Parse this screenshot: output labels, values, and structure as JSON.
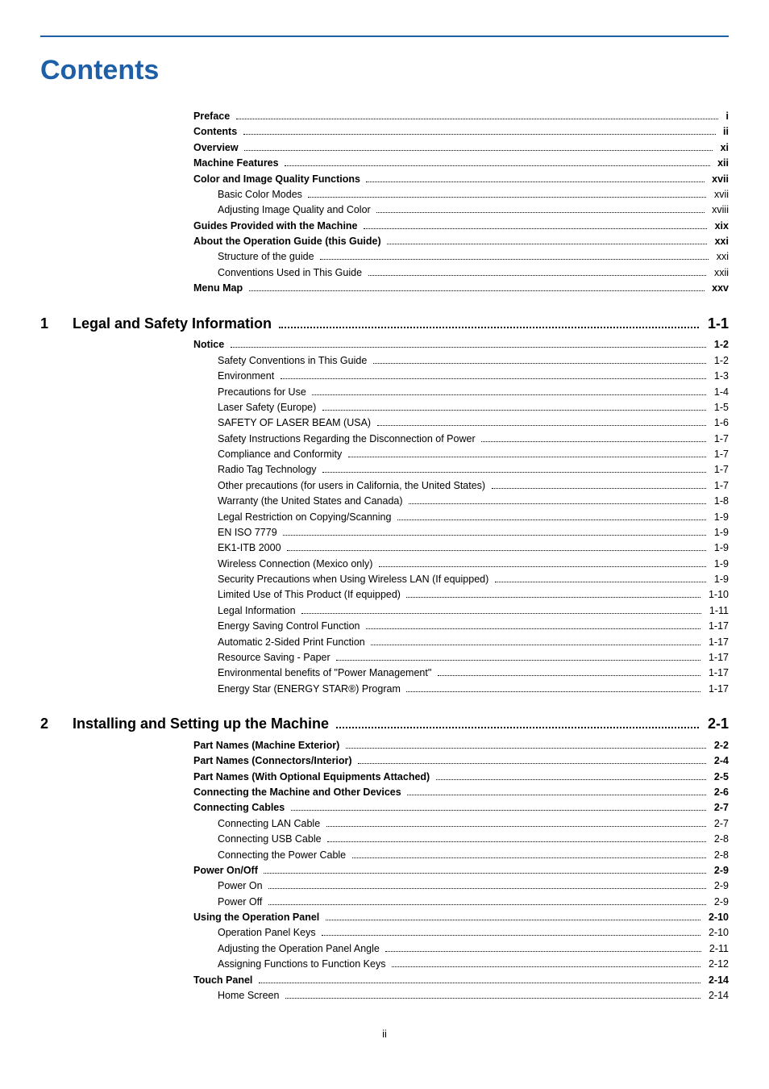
{
  "heading": "Contents",
  "page_number": "ii",
  "colors": {
    "accent": "#1e5fa8",
    "text": "#000000",
    "background": "#ffffff"
  },
  "front": [
    {
      "label": "Preface",
      "page": "i",
      "level": "a",
      "bold": true
    },
    {
      "label": "Contents",
      "page": "ii",
      "level": "a",
      "bold": true
    },
    {
      "label": "Overview",
      "page": "xi",
      "level": "a",
      "bold": true
    },
    {
      "label": "Machine Features",
      "page": "xii",
      "level": "a",
      "bold": true
    },
    {
      "label": "Color and Image Quality Functions",
      "page": "xvii",
      "level": "a",
      "bold": true
    },
    {
      "label": "Basic Color Modes",
      "page": "xvii",
      "level": "b",
      "bold": false
    },
    {
      "label": "Adjusting Image Quality and Color",
      "page": "xviii",
      "level": "b",
      "bold": false
    },
    {
      "label": "Guides Provided with the Machine",
      "page": "xix",
      "level": "a",
      "bold": true
    },
    {
      "label": "About the Operation Guide (this Guide)",
      "page": "xxi",
      "level": "a",
      "bold": true
    },
    {
      "label": "Structure of the guide",
      "page": "xxi",
      "level": "b",
      "bold": false
    },
    {
      "label": "Conventions Used in This Guide",
      "page": "xxii",
      "level": "b",
      "bold": false
    },
    {
      "label": "Menu Map",
      "page": "xxv",
      "level": "a",
      "bold": true
    }
  ],
  "ch1": {
    "num": "1",
    "title": "Legal and Safety Information",
    "page": "1-1",
    "items": [
      {
        "label": "Notice",
        "page": "1-2",
        "level": "c",
        "bold": true
      },
      {
        "label": "Safety Conventions in This Guide",
        "page": "1-2",
        "level": "d",
        "bold": false
      },
      {
        "label": "Environment",
        "page": "1-3",
        "level": "d",
        "bold": false
      },
      {
        "label": "Precautions for Use",
        "page": "1-4",
        "level": "d",
        "bold": false
      },
      {
        "label": "Laser Safety (Europe)",
        "page": "1-5",
        "level": "d",
        "bold": false
      },
      {
        "label": "SAFETY OF LASER BEAM (USA)",
        "page": "1-6",
        "level": "d",
        "bold": false
      },
      {
        "label": "Safety Instructions Regarding the Disconnection of Power",
        "page": "1-7",
        "level": "d",
        "bold": false
      },
      {
        "label": "Compliance and Conformity",
        "page": "1-7",
        "level": "d",
        "bold": false
      },
      {
        "label": "Radio Tag Technology",
        "page": "1-7",
        "level": "d",
        "bold": false
      },
      {
        "label": "Other precautions (for users in California, the United States)",
        "page": "1-7",
        "level": "d",
        "bold": false
      },
      {
        "label": "Warranty (the United States and Canada)",
        "page": "1-8",
        "level": "d",
        "bold": false
      },
      {
        "label": "Legal Restriction on Copying/Scanning",
        "page": "1-9",
        "level": "d",
        "bold": false
      },
      {
        "label": "EN ISO 7779",
        "page": "1-9",
        "level": "d",
        "bold": false
      },
      {
        "label": "EK1-ITB 2000",
        "page": "1-9",
        "level": "d",
        "bold": false
      },
      {
        "label": "Wireless Connection (Mexico only)",
        "page": "1-9",
        "level": "d",
        "bold": false
      },
      {
        "label": "Security Precautions when Using Wireless LAN (If equipped)",
        "page": "1-9",
        "level": "d",
        "bold": false
      },
      {
        "label": "Limited Use of This Product (If equipped)",
        "page": "1-10",
        "level": "d",
        "bold": false
      },
      {
        "label": "Legal Information",
        "page": "1-11",
        "level": "d",
        "bold": false
      },
      {
        "label": "Energy Saving Control Function",
        "page": "1-17",
        "level": "d",
        "bold": false
      },
      {
        "label": "Automatic 2-Sided Print Function",
        "page": "1-17",
        "level": "d",
        "bold": false
      },
      {
        "label": "Resource Saving - Paper",
        "page": "1-17",
        "level": "d",
        "bold": false
      },
      {
        "label": "Environmental benefits of \"Power Management\"",
        "page": "1-17",
        "level": "d",
        "bold": false
      },
      {
        "label": "Energy Star (ENERGY STAR®) Program",
        "page": "1-17",
        "level": "d",
        "bold": false
      }
    ]
  },
  "ch2": {
    "num": "2",
    "title": "Installing and Setting up the Machine",
    "page": "2-1",
    "items": [
      {
        "label": "Part Names (Machine Exterior)",
        "page": "2-2",
        "level": "c",
        "bold": true
      },
      {
        "label": "Part Names (Connectors/Interior)",
        "page": "2-4",
        "level": "c",
        "bold": true
      },
      {
        "label": "Part Names (With Optional Equipments Attached)",
        "page": "2-5",
        "level": "c",
        "bold": true
      },
      {
        "label": "Connecting the Machine and Other Devices",
        "page": "2-6",
        "level": "c",
        "bold": true
      },
      {
        "label": "Connecting Cables",
        "page": "2-7",
        "level": "c",
        "bold": true
      },
      {
        "label": "Connecting LAN Cable",
        "page": "2-7",
        "level": "d",
        "bold": false
      },
      {
        "label": "Connecting USB Cable",
        "page": "2-8",
        "level": "d",
        "bold": false
      },
      {
        "label": "Connecting the Power Cable",
        "page": "2-8",
        "level": "d",
        "bold": false
      },
      {
        "label": "Power On/Off",
        "page": "2-9",
        "level": "c",
        "bold": true
      },
      {
        "label": "Power On",
        "page": "2-9",
        "level": "d",
        "bold": false
      },
      {
        "label": "Power Off",
        "page": "2-9",
        "level": "d",
        "bold": false
      },
      {
        "label": "Using the Operation Panel",
        "page": "2-10",
        "level": "c",
        "bold": true
      },
      {
        "label": "Operation Panel Keys",
        "page": "2-10",
        "level": "d",
        "bold": false
      },
      {
        "label": "Adjusting the Operation Panel Angle",
        "page": "2-11",
        "level": "d",
        "bold": false
      },
      {
        "label": "Assigning Functions to Function Keys",
        "page": "2-12",
        "level": "d",
        "bold": false
      },
      {
        "label": "Touch Panel",
        "page": "2-14",
        "level": "c",
        "bold": true
      },
      {
        "label": "Home Screen",
        "page": "2-14",
        "level": "d",
        "bold": false
      }
    ]
  }
}
